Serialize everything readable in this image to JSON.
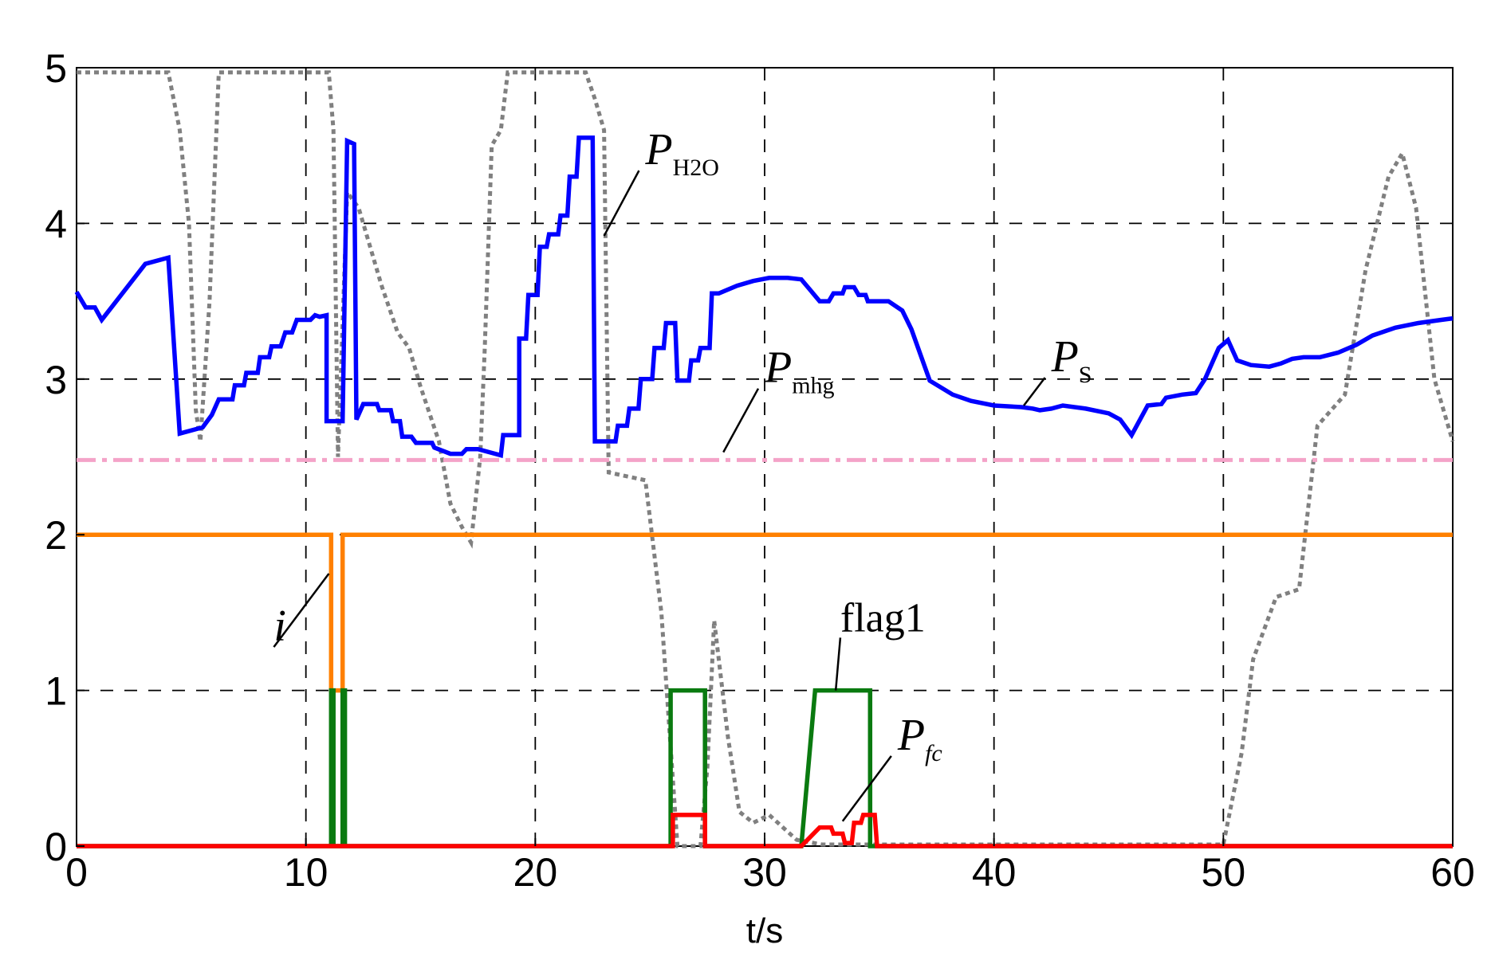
{
  "chart_data": {
    "type": "line",
    "title": "",
    "xlabel": "t/s",
    "ylabel": "",
    "xlim": [
      0,
      60
    ],
    "ylim": [
      0,
      5
    ],
    "x_ticks": [
      "0",
      "10",
      "20",
      "30",
      "40",
      "50",
      "60"
    ],
    "y_ticks": [
      "0",
      "1",
      "2",
      "3",
      "4",
      "5"
    ],
    "grid": "dashed",
    "series": [
      {
        "key": "PH2O",
        "color": "#808080",
        "style": "dotted",
        "points": [
          [
            0,
            4.97
          ],
          [
            4,
            4.97
          ],
          [
            4.5,
            4.6
          ],
          [
            4.9,
            4.0
          ],
          [
            5.2,
            2.8
          ],
          [
            5.4,
            2.6
          ],
          [
            5.8,
            3.5
          ],
          [
            6.2,
            4.97
          ],
          [
            11,
            4.97
          ],
          [
            11.2,
            4.6
          ],
          [
            11.4,
            2.5
          ],
          [
            11.8,
            4.2
          ],
          [
            12.3,
            4.1
          ],
          [
            12.8,
            3.85
          ],
          [
            13.3,
            3.6
          ],
          [
            14,
            3.3
          ],
          [
            14.5,
            3.2
          ],
          [
            15,
            2.95
          ],
          [
            15.8,
            2.6
          ],
          [
            16.3,
            2.2
          ],
          [
            16.8,
            2.05
          ],
          [
            17.2,
            1.95
          ],
          [
            17.6,
            2.5
          ],
          [
            17.8,
            3.2
          ],
          [
            18.1,
            4.5
          ],
          [
            18.5,
            4.6
          ],
          [
            18.8,
            4.97
          ],
          [
            22.2,
            4.97
          ],
          [
            22.6,
            4.8
          ],
          [
            23,
            4.6
          ],
          [
            23.2,
            2.4
          ],
          [
            24.8,
            2.35
          ],
          [
            25.5,
            1.5
          ],
          [
            25.8,
            0.85
          ],
          [
            26.2,
            0.0
          ],
          [
            27.2,
            0.0
          ],
          [
            27.5,
            0.5
          ],
          [
            27.8,
            1.45
          ],
          [
            28.4,
            0.7
          ],
          [
            28.9,
            0.22
          ],
          [
            29.5,
            0.15
          ],
          [
            30.2,
            0.2
          ],
          [
            30.8,
            0.12
          ],
          [
            31.4,
            0.04
          ],
          [
            32.5,
            0.01
          ],
          [
            36,
            0.01
          ],
          [
            50,
            0.01
          ],
          [
            50.8,
            0.6
          ],
          [
            51.3,
            1.2
          ],
          [
            52.3,
            1.6
          ],
          [
            53.3,
            1.65
          ],
          [
            54.1,
            2.7
          ],
          [
            55.3,
            2.9
          ],
          [
            56.2,
            3.7
          ],
          [
            57.2,
            4.3
          ],
          [
            57.8,
            4.45
          ],
          [
            58.4,
            4.1
          ],
          [
            59.2,
            3.0
          ],
          [
            60,
            2.6
          ]
        ]
      },
      {
        "key": "Ps",
        "color": "#0000ff",
        "style": "solid",
        "points": [
          [
            0,
            3.56
          ],
          [
            0.4,
            3.46
          ],
          [
            0.8,
            3.46
          ],
          [
            1.1,
            3.38
          ],
          [
            3,
            3.74
          ],
          [
            4,
            3.78
          ],
          [
            4.5,
            2.65
          ],
          [
            5.5,
            2.69
          ],
          [
            5.9,
            2.77
          ],
          [
            6.2,
            2.87
          ],
          [
            6.8,
            2.87
          ],
          [
            6.9,
            2.96
          ],
          [
            7.3,
            2.96
          ],
          [
            7.4,
            3.04
          ],
          [
            7.9,
            3.04
          ],
          [
            8,
            3.14
          ],
          [
            8.4,
            3.14
          ],
          [
            8.5,
            3.21
          ],
          [
            8.9,
            3.21
          ],
          [
            9.1,
            3.3
          ],
          [
            9.4,
            3.3
          ],
          [
            9.6,
            3.38
          ],
          [
            10.2,
            3.38
          ],
          [
            10.4,
            3.41
          ],
          [
            10.6,
            3.4
          ],
          [
            10.9,
            3.41
          ],
          [
            10.9,
            2.73
          ],
          [
            11.6,
            2.73
          ],
          [
            11.8,
            4.53
          ],
          [
            12.1,
            4.51
          ],
          [
            12.2,
            2.74
          ],
          [
            12.5,
            2.84
          ],
          [
            13.1,
            2.84
          ],
          [
            13.2,
            2.8
          ],
          [
            13.7,
            2.8
          ],
          [
            13.8,
            2.73
          ],
          [
            14.1,
            2.73
          ],
          [
            14.2,
            2.63
          ],
          [
            14.6,
            2.63
          ],
          [
            14.8,
            2.59
          ],
          [
            15.5,
            2.59
          ],
          [
            15.6,
            2.56
          ],
          [
            16.3,
            2.52
          ],
          [
            16.8,
            2.52
          ],
          [
            17,
            2.55
          ],
          [
            17.5,
            2.55
          ],
          [
            18,
            2.53
          ],
          [
            18.5,
            2.51
          ],
          [
            18.6,
            2.64
          ],
          [
            19.3,
            2.64
          ],
          [
            19.3,
            3.26
          ],
          [
            19.6,
            3.26
          ],
          [
            19.7,
            3.54
          ],
          [
            20.1,
            3.54
          ],
          [
            20.2,
            3.85
          ],
          [
            20.5,
            3.85
          ],
          [
            20.6,
            3.93
          ],
          [
            21,
            3.93
          ],
          [
            21.1,
            4.05
          ],
          [
            21.4,
            4.05
          ],
          [
            21.5,
            4.3
          ],
          [
            21.8,
            4.3
          ],
          [
            21.9,
            4.55
          ],
          [
            22.5,
            4.55
          ],
          [
            22.6,
            2.6
          ],
          [
            23.5,
            2.6
          ],
          [
            23.6,
            2.7
          ],
          [
            24,
            2.7
          ],
          [
            24.1,
            2.81
          ],
          [
            24.5,
            2.81
          ],
          [
            24.6,
            3.0
          ],
          [
            25.1,
            3.0
          ],
          [
            25.2,
            3.2
          ],
          [
            25.6,
            3.2
          ],
          [
            25.7,
            3.36
          ],
          [
            26.1,
            3.36
          ],
          [
            26.2,
            2.99
          ],
          [
            26.7,
            2.99
          ],
          [
            26.8,
            3.12
          ],
          [
            27.1,
            3.12
          ],
          [
            27.2,
            3.2
          ],
          [
            27.6,
            3.2
          ],
          [
            27.7,
            3.55
          ],
          [
            28,
            3.55
          ],
          [
            28.8,
            3.6
          ],
          [
            29.5,
            3.63
          ],
          [
            30.2,
            3.65
          ],
          [
            31,
            3.65
          ],
          [
            31.6,
            3.64
          ],
          [
            32,
            3.57
          ],
          [
            32.4,
            3.5
          ],
          [
            32.8,
            3.5
          ],
          [
            33,
            3.55
          ],
          [
            33.4,
            3.55
          ],
          [
            33.5,
            3.59
          ],
          [
            33.9,
            3.59
          ],
          [
            34.1,
            3.54
          ],
          [
            34.4,
            3.54
          ],
          [
            34.5,
            3.5
          ],
          [
            35.4,
            3.5
          ],
          [
            36,
            3.44
          ],
          [
            36.4,
            3.32
          ],
          [
            37.2,
            2.99
          ],
          [
            38.2,
            2.9
          ],
          [
            39,
            2.86
          ],
          [
            40,
            2.83
          ],
          [
            41.2,
            2.82
          ],
          [
            41.7,
            2.81
          ],
          [
            42,
            2.8
          ],
          [
            42.5,
            2.81
          ],
          [
            43,
            2.83
          ],
          [
            44,
            2.81
          ],
          [
            45,
            2.78
          ],
          [
            45.5,
            2.74
          ],
          [
            46,
            2.64
          ],
          [
            46.7,
            2.83
          ],
          [
            47.3,
            2.84
          ],
          [
            47.5,
            2.88
          ],
          [
            48.2,
            2.9
          ],
          [
            48.8,
            2.91
          ],
          [
            49.2,
            3.0
          ],
          [
            49.8,
            3.2
          ],
          [
            50.2,
            3.25
          ],
          [
            50.6,
            3.12
          ],
          [
            51.2,
            3.09
          ],
          [
            52,
            3.08
          ],
          [
            52.5,
            3.1
          ],
          [
            53,
            3.13
          ],
          [
            53.5,
            3.14
          ],
          [
            54.2,
            3.14
          ],
          [
            55,
            3.17
          ],
          [
            55.8,
            3.22
          ],
          [
            56.5,
            3.28
          ],
          [
            57.5,
            3.33
          ],
          [
            58.5,
            3.36
          ],
          [
            59.5,
            3.38
          ],
          [
            60,
            3.39
          ]
        ]
      },
      {
        "key": "Pmhg",
        "color": "#f4a3c8",
        "style": "dashdot",
        "points": [
          [
            0,
            2.48
          ],
          [
            60,
            2.48
          ]
        ]
      },
      {
        "key": "i",
        "color": "#ff8000",
        "style": "solid",
        "points": [
          [
            0,
            2.0
          ],
          [
            11.1,
            2.0
          ],
          [
            11.1,
            1.0
          ],
          [
            11.6,
            1.0
          ],
          [
            11.6,
            2.0
          ],
          [
            60,
            2.0
          ]
        ]
      },
      {
        "key": "flag1",
        "color": "#0a7a10",
        "style": "solid",
        "points": [
          [
            0,
            0.0
          ],
          [
            11.1,
            0.0
          ],
          [
            11.1,
            1.0
          ],
          [
            11.2,
            1.0
          ],
          [
            11.2,
            0.0
          ],
          [
            11.6,
            0.0
          ],
          [
            11.6,
            1.0
          ],
          [
            11.7,
            1.0
          ],
          [
            11.7,
            0.0
          ],
          [
            25.9,
            0.0
          ],
          [
            25.9,
            1.0
          ],
          [
            27.4,
            1.0
          ],
          [
            27.4,
            0.0
          ],
          [
            31.6,
            0.0
          ],
          [
            32.2,
            1.0
          ],
          [
            34.6,
            1.0
          ],
          [
            34.6,
            0.0
          ],
          [
            60,
            0.0
          ]
        ]
      },
      {
        "key": "Pfc",
        "color": "#ff0000",
        "style": "solid",
        "points": [
          [
            0,
            0.0
          ],
          [
            26,
            0.0
          ],
          [
            26,
            0.2
          ],
          [
            27.4,
            0.2
          ],
          [
            27.4,
            0.0
          ],
          [
            31.6,
            0.0
          ],
          [
            32.4,
            0.12
          ],
          [
            32.9,
            0.12
          ],
          [
            33,
            0.08
          ],
          [
            33.4,
            0.08
          ],
          [
            33.5,
            0.02
          ],
          [
            33.8,
            0.02
          ],
          [
            33.9,
            0.15
          ],
          [
            34.2,
            0.15
          ],
          [
            34.3,
            0.2
          ],
          [
            34.8,
            0.2
          ],
          [
            34.9,
            0.0
          ],
          [
            60,
            0.0
          ]
        ]
      }
    ],
    "annotations": [
      {
        "key": "PH2O",
        "base": "P",
        "sub": "H2O",
        "italic": true,
        "text_xy": [
          24.8,
          4.38
        ],
        "point_xy": [
          23.0,
          3.92
        ]
      },
      {
        "key": "Pmhg",
        "base": "P",
        "sub": "mhg",
        "italic": true,
        "text_xy": [
          30.0,
          2.98
        ],
        "point_xy": [
          28.2,
          2.53
        ]
      },
      {
        "key": "Ps",
        "base": "P",
        "sub": "S",
        "italic": true,
        "text_xy": [
          42.5,
          3.05
        ],
        "point_xy": [
          41.3,
          2.83
        ]
      },
      {
        "key": "i",
        "base": "i",
        "sub": "",
        "italic": true,
        "text_xy": [
          8.6,
          1.32
        ],
        "point_xy": [
          11.0,
          1.75
        ]
      },
      {
        "key": "flag1",
        "base": "flag1",
        "sub": "",
        "italic": false,
        "text_xy": [
          33.3,
          1.38
        ],
        "point_xy": [
          33.1,
          1.0
        ]
      },
      {
        "key": "Pfc",
        "base": "P",
        "sub": "fc",
        "italic": true,
        "text_xy": [
          35.8,
          0.62
        ],
        "point_xy": [
          33.4,
          0.16
        ]
      }
    ]
  }
}
